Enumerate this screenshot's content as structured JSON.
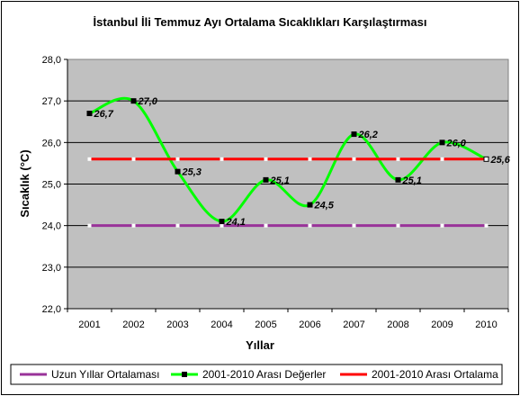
{
  "chart_data": {
    "type": "line",
    "title": "İstanbul İli Temmuz Ayı Ortalama Sıcaklıkları Karşılaştırması",
    "xlabel": "Yıllar",
    "ylabel": "Sıcaklık (°C)",
    "categories": [
      "2001",
      "2002",
      "2003",
      "2004",
      "2005",
      "2006",
      "2007",
      "2008",
      "2009",
      "2010"
    ],
    "ylim": [
      22.0,
      28.0
    ],
    "yticks": [
      "22,0",
      "23,0",
      "24,0",
      "25,0",
      "26,0",
      "27,0",
      "28,0"
    ],
    "grid": true,
    "legend_position": "bottom",
    "series": [
      {
        "name": "Uzun Yıllar Ortalaması",
        "values": [
          24.0,
          24.0,
          24.0,
          24.0,
          24.0,
          24.0,
          24.0,
          24.0,
          24.0,
          24.0
        ],
        "color": "#993399"
      },
      {
        "name": "2001-2010 Arası Değerler",
        "values": [
          26.7,
          27.0,
          25.3,
          24.1,
          25.1,
          24.5,
          26.2,
          25.1,
          26.0,
          25.6
        ],
        "data_labels": [
          "26,7",
          "27,0",
          "25,3",
          "24,1",
          "25,1",
          "24,5",
          "26,2",
          "25,1",
          "26,0",
          "25,6"
        ],
        "color": "#00ff00",
        "marker_color": "#000000",
        "smooth": true
      },
      {
        "name": "2001-2010 Arası Ortalama",
        "values": [
          25.6,
          25.6,
          25.6,
          25.6,
          25.6,
          25.6,
          25.6,
          25.6,
          25.6,
          25.6
        ],
        "color": "#ff0000"
      }
    ]
  }
}
